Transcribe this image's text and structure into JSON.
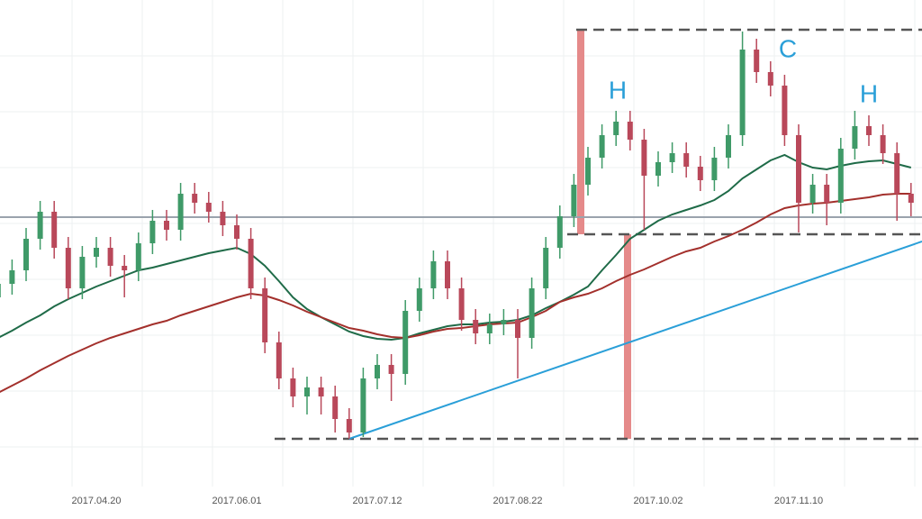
{
  "chart_data": {
    "type": "candlestick",
    "categories": [
      null,
      null,
      null,
      null,
      null,
      null,
      null,
      "2017.04.20",
      null,
      null,
      null,
      null,
      null,
      null,
      null,
      null,
      null,
      "2017.06.01",
      null,
      null,
      null,
      null,
      null,
      null,
      null,
      null,
      null,
      "2017.07.12",
      null,
      null,
      null,
      null,
      null,
      null,
      null,
      null,
      null,
      "2017.08.22",
      null,
      null,
      null,
      null,
      null,
      null,
      null,
      null,
      null,
      "2017.10.02",
      null,
      null,
      null,
      null,
      null,
      null,
      null,
      null,
      null,
      "2017.11.10",
      null,
      null,
      null,
      null,
      null,
      null,
      null,
      null
    ],
    "open": [
      210,
      225,
      240,
      275,
      305,
      265,
      220,
      255,
      265,
      245,
      240,
      270,
      295,
      285,
      325,
      315,
      305,
      290,
      275,
      220,
      160,
      120,
      100,
      110,
      100,
      75,
      60,
      120,
      135,
      125,
      195,
      220,
      250,
      220,
      185,
      170,
      180,
      185,
      165,
      220,
      265,
      300,
      335,
      365,
      390,
      405,
      385,
      345,
      360,
      370,
      355,
      340,
      365,
      390,
      485,
      460,
      445,
      390,
      315,
      335,
      315,
      375,
      400,
      390,
      370,
      325
    ],
    "high": [
      237,
      252,
      287,
      317,
      317,
      277,
      267,
      277,
      277,
      257,
      282,
      307,
      307,
      337,
      337,
      327,
      317,
      302,
      287,
      232,
      172,
      132,
      122,
      122,
      112,
      87,
      132,
      147,
      147,
      207,
      232,
      262,
      262,
      232,
      197,
      192,
      197,
      197,
      232,
      277,
      312,
      347,
      377,
      402,
      417,
      417,
      397,
      372,
      382,
      382,
      367,
      377,
      402,
      505,
      497,
      472,
      457,
      402,
      347,
      347,
      387,
      417,
      412,
      402,
      382,
      337
    ],
    "low": [
      198,
      213,
      228,
      263,
      253,
      208,
      208,
      243,
      233,
      210,
      228,
      258,
      273,
      273,
      303,
      293,
      278,
      263,
      208,
      148,
      108,
      88,
      80,
      80,
      60,
      53,
      55,
      108,
      95,
      113,
      183,
      208,
      208,
      173,
      158,
      158,
      168,
      120,
      153,
      208,
      253,
      288,
      323,
      353,
      378,
      373,
      285,
      333,
      348,
      343,
      328,
      328,
      353,
      378,
      448,
      433,
      378,
      282,
      303,
      290,
      303,
      363,
      378,
      358,
      295,
      300
    ],
    "close": [
      225,
      240,
      275,
      305,
      265,
      220,
      255,
      265,
      245,
      240,
      270,
      295,
      285,
      325,
      315,
      305,
      290,
      275,
      220,
      160,
      120,
      100,
      110,
      100,
      75,
      60,
      120,
      135,
      125,
      195,
      220,
      250,
      220,
      185,
      170,
      180,
      185,
      165,
      220,
      265,
      300,
      335,
      365,
      390,
      405,
      385,
      345,
      360,
      370,
      355,
      340,
      365,
      390,
      485,
      460,
      445,
      390,
      315,
      335,
      315,
      375,
      400,
      390,
      370,
      325,
      315
    ],
    "up_color": "#3f9a68",
    "down_color": "#b9485a",
    "series": [
      {
        "color": "#1f6b48",
        "values": [
          165,
          173,
          182,
          190,
          200,
          208,
          215,
          222,
          228,
          234,
          240,
          243,
          247,
          251,
          255,
          259,
          262,
          265,
          258,
          245,
          228,
          210,
          197,
          188,
          180,
          172,
          167,
          164,
          163,
          165,
          170,
          174,
          178,
          180,
          180,
          182,
          183,
          185,
          190,
          198,
          205,
          213,
          222,
          240,
          257,
          275,
          285,
          295,
          302,
          307,
          312,
          318,
          328,
          342,
          352,
          362,
          368,
          360,
          354,
          352,
          356,
          359,
          361,
          362,
          358,
          354
        ]
      },
      {
        "color": "#a3302c",
        "values": [
          104,
          112,
          120,
          129,
          137,
          145,
          152,
          159,
          165,
          170,
          175,
          180,
          184,
          190,
          195,
          200,
          205,
          210,
          214,
          212,
          207,
          201,
          194,
          188,
          182,
          176,
          173,
          169,
          166,
          165,
          168,
          172,
          175,
          176,
          178,
          180,
          181,
          182,
          188,
          195,
          205,
          210,
          214,
          220,
          228,
          235,
          241,
          248,
          255,
          261,
          265,
          272,
          278,
          285,
          293,
          302,
          309,
          312,
          314,
          315,
          317,
          319,
          321,
          324,
          325,
          325
        ]
      }
    ],
    "levels": [
      {
        "value": 299,
        "color": "#9aa3ad",
        "style": "solid"
      },
      {
        "value": 507,
        "color": "#555555",
        "style": "dashed"
      },
      {
        "value": 280,
        "color": "#555555",
        "style": "dashed"
      },
      {
        "value": 53,
        "color": "#555555",
        "style": "dashed"
      }
    ],
    "trendline": {
      "values": [
        53,
        272
      ],
      "color": "#2a9fd8"
    },
    "ranges": [
      {
        "values": [
          280,
          507
        ],
        "color": "#e58a8a"
      },
      {
        "values": [
          53,
          280
        ],
        "color": "#e58a8a"
      }
    ],
    "annotations": [
      "H",
      "C",
      "H"
    ],
    "annotation_color": "#2a9fd8",
    "ylim": [
      0,
      540
    ]
  }
}
